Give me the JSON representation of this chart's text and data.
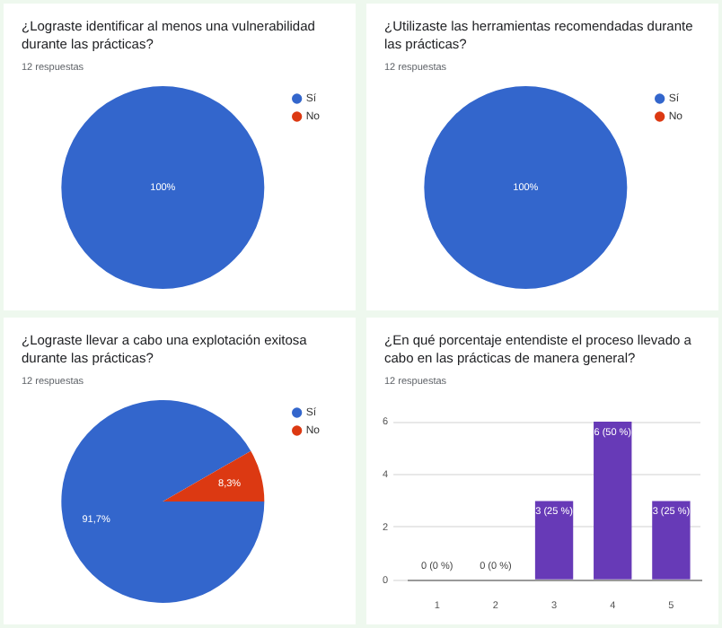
{
  "chart_data": [
    {
      "type": "pie",
      "title": "¿Lograste identificar al menos una vulnerabilidad durante las prácticas?",
      "subtitle": "12 respuestas",
      "categories": [
        "Sí",
        "No"
      ],
      "values": [
        100,
        0
      ],
      "colors": [
        "#3366cc",
        "#dc3912"
      ],
      "value_labels": [
        "100%",
        null
      ],
      "legend": "top right"
    },
    {
      "type": "pie",
      "title": "¿Utilizaste las herramientas recomendadas durante las prácticas?",
      "subtitle": "12 respuestas",
      "categories": [
        "Sí",
        "No"
      ],
      "values": [
        100,
        0
      ],
      "colors": [
        "#3366cc",
        "#dc3912"
      ],
      "value_labels": [
        "100%",
        null
      ],
      "legend": "top right"
    },
    {
      "type": "pie",
      "title": "¿Lograste llevar a cabo una explotación exitosa durante las prácticas?",
      "subtitle": "12 respuestas",
      "categories": [
        "Sí",
        "No"
      ],
      "values": [
        91.7,
        8.3
      ],
      "colors": [
        "#3366cc",
        "#dc3912"
      ],
      "value_labels": [
        "91,7%",
        "8,3%"
      ],
      "legend": "top right"
    },
    {
      "type": "bar",
      "title": "¿En qué porcentaje entendiste el proceso llevado a cabo en las prácticas de manera general?",
      "subtitle": "12 respuestas",
      "categories": [
        "1",
        "2",
        "3",
        "4",
        "5"
      ],
      "values": [
        0,
        0,
        3,
        6,
        3
      ],
      "color": "#673ab7",
      "value_labels": [
        "0 (0 %)",
        "0 (0 %)",
        "3 (25 %)",
        "6 (50 %)",
        "3 (25 %)"
      ],
      "ylim": [
        0,
        6
      ],
      "yticks": [
        0,
        2,
        4,
        6
      ],
      "grid": "y"
    }
  ]
}
